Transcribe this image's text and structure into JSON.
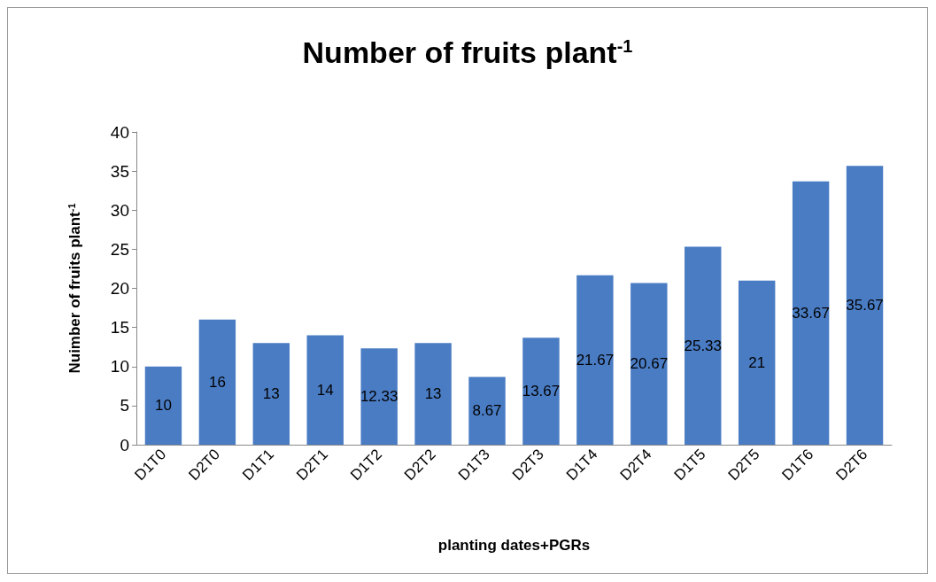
{
  "chart_data": {
    "type": "bar",
    "title": "Number of fruits plant$^{-1}$",
    "xlabel": "planting dates+PGRs",
    "ylabel": "Nuimber of fruits plant$^{-1}$",
    "categories": [
      "D1T0",
      "D2T0",
      "D1T1",
      "D2T1",
      "D1T2",
      "D2T2",
      "D1T3",
      "D2T3",
      "D1T4",
      "D2T4",
      "D1T5",
      "D2T5",
      "D1T6",
      "D2T6"
    ],
    "values": [
      10,
      16,
      13,
      14,
      12.33,
      13,
      8.67,
      13.67,
      21.67,
      20.67,
      25.33,
      21,
      33.67,
      35.67
    ],
    "color": "#4a7cc4",
    "ylim": [
      0,
      40
    ],
    "yticks": [
      0,
      5,
      10,
      15,
      20,
      25,
      30,
      35,
      40
    ],
    "grid": false,
    "data_labels": true
  }
}
